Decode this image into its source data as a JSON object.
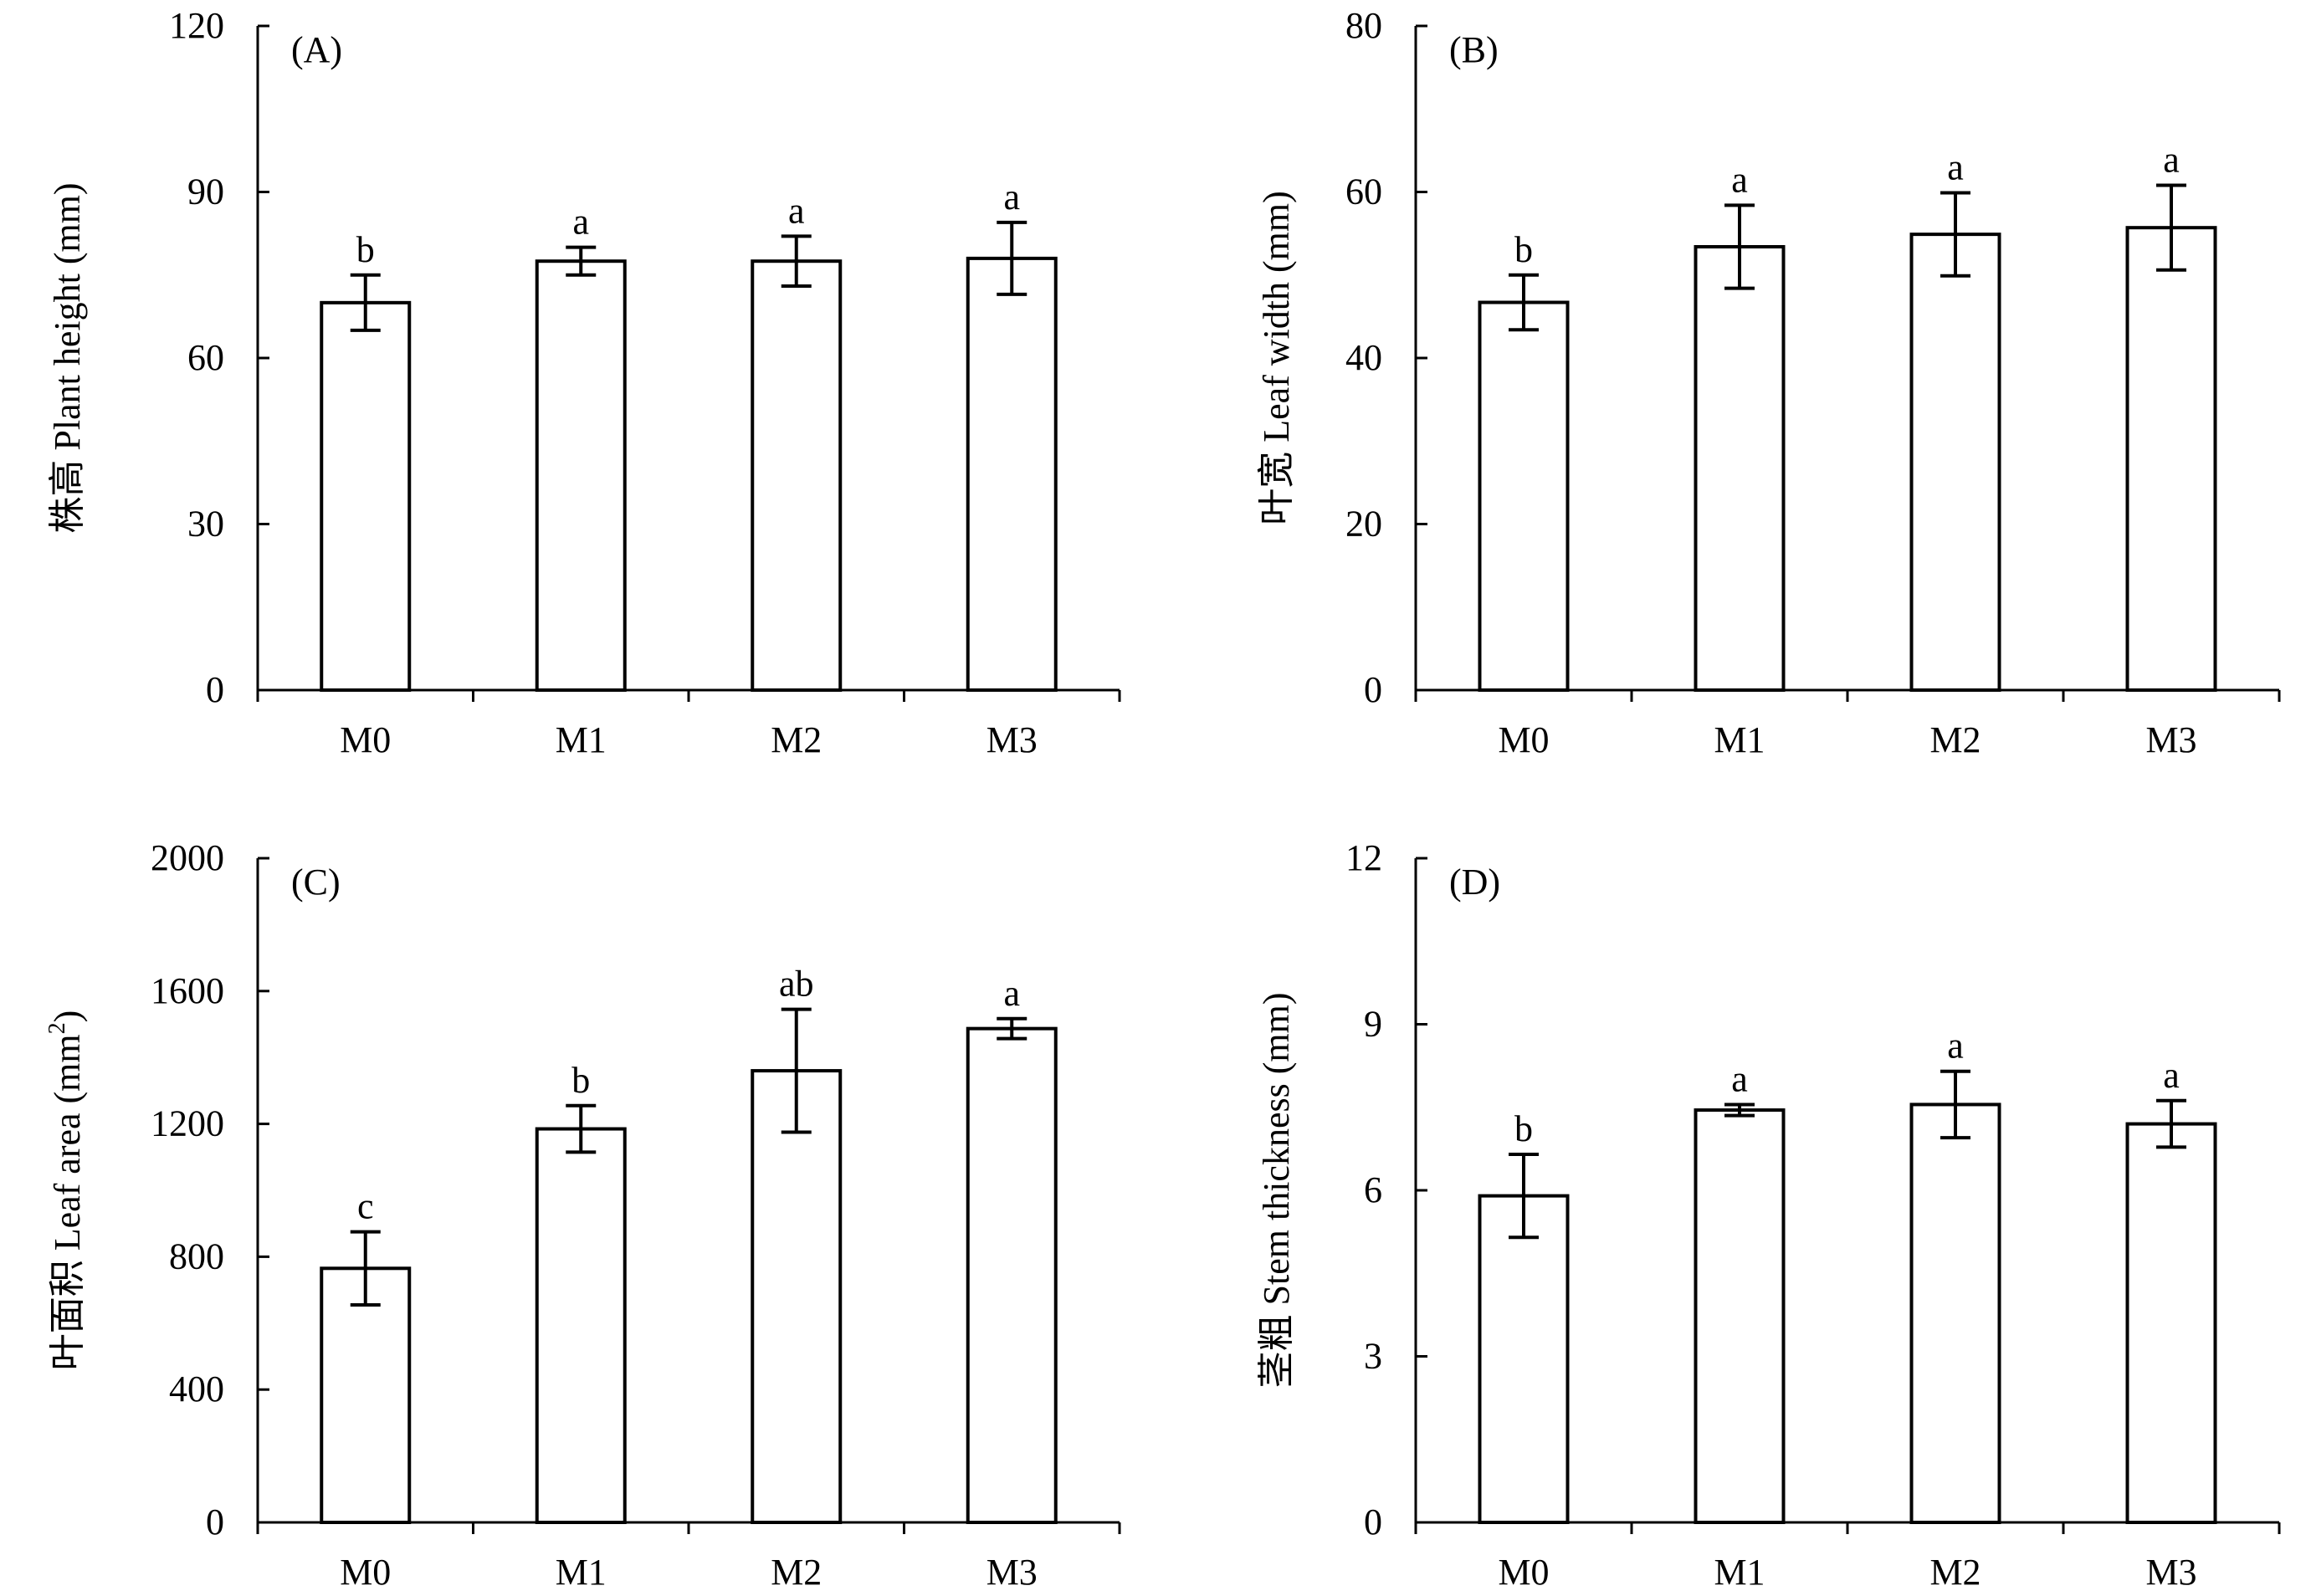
{
  "chart_data": [
    {
      "type": "bar",
      "panel_label": "(A)",
      "ylabel": "株高 Plant height (mm)",
      "ylabel_sup": "",
      "ylabel_suffix": "",
      "categories": [
        "M0",
        "M1",
        "M2",
        "M3"
      ],
      "values": [
        70,
        77.5,
        77.5,
        78
      ],
      "errors": [
        5,
        2.5,
        4.5,
        6.5
      ],
      "significance": [
        "b",
        "a",
        "a",
        "a"
      ],
      "ylim": [
        0,
        120
      ],
      "yticks": [
        0,
        30,
        60,
        90,
        120
      ]
    },
    {
      "type": "bar",
      "panel_label": "(B)",
      "ylabel": "叶宽 Leaf width (mm)",
      "ylabel_sup": "",
      "ylabel_suffix": "",
      "categories": [
        "M0",
        "M1",
        "M2",
        "M3"
      ],
      "values": [
        46.7,
        53.4,
        54.9,
        55.7
      ],
      "errors": [
        3.3,
        5,
        5,
        5.1
      ],
      "significance": [
        "b",
        "a",
        "a",
        "a"
      ],
      "ylim": [
        0,
        80
      ],
      "yticks": [
        0,
        20,
        40,
        60,
        80
      ]
    },
    {
      "type": "bar",
      "panel_label": "(C)",
      "ylabel": "叶面积 Leaf area (mm",
      "ylabel_sup": "2",
      "ylabel_suffix": ")",
      "categories": [
        "M0",
        "M1",
        "M2",
        "M3"
      ],
      "values": [
        765,
        1185,
        1360,
        1487
      ],
      "errors": [
        110,
        70,
        185,
        30
      ],
      "significance": [
        "c",
        "b",
        "ab",
        "a"
      ],
      "ylim": [
        0,
        2000
      ],
      "yticks": [
        0,
        400,
        800,
        1200,
        1600,
        2000
      ]
    },
    {
      "type": "bar",
      "panel_label": "(D)",
      "ylabel": "茎粗 Stem thickness (mm)",
      "ylabel_sup": "",
      "ylabel_suffix": "",
      "categories": [
        "M0",
        "M1",
        "M2",
        "M3"
      ],
      "values": [
        5.9,
        7.45,
        7.55,
        7.2
      ],
      "errors": [
        0.75,
        0.1,
        0.6,
        0.42
      ],
      "significance": [
        "b",
        "a",
        "a",
        "a"
      ],
      "ylim": [
        0,
        12
      ],
      "yticks": [
        0,
        3,
        6,
        9,
        12
      ]
    }
  ]
}
